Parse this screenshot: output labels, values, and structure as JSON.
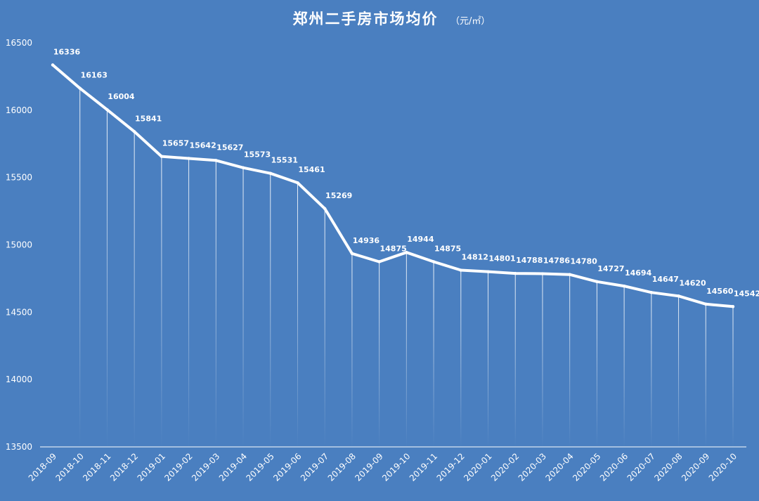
{
  "chart_data": {
    "type": "line",
    "title": "郑州二手房市场均价",
    "title_unit": "（元/㎡）",
    "xlabel": "",
    "ylabel": "",
    "ylim": [
      13500,
      16500
    ],
    "yticks": [
      13500,
      14000,
      14500,
      15000,
      15500,
      16000,
      16500
    ],
    "grid": false,
    "drop_lines": true,
    "line_color": "#ffffff",
    "background_color": "#4a7fc0",
    "categories": [
      "2018-09",
      "2018-10",
      "2018-11",
      "2018-12",
      "2019-01",
      "2019-02",
      "2019-03",
      "2019-04",
      "2019-05",
      "2019-06",
      "2019-07",
      "2019-08",
      "2019-09",
      "2019-10",
      "2019-11",
      "2019-12",
      "2020-01",
      "2020-02",
      "2020-03",
      "2020-04",
      "2020-05",
      "2020-06",
      "2020-07",
      "2020-08",
      "2020-09",
      "2020-10"
    ],
    "values": [
      16336,
      16163,
      16004,
      15841,
      15657,
      15642,
      15627,
      15573,
      15531,
      15461,
      15269,
      14936,
      14875,
      14944,
      14875,
      14812,
      14801,
      14788,
      14786,
      14780,
      14727,
      14694,
      14647,
      14620,
      14560,
      14542
    ]
  }
}
